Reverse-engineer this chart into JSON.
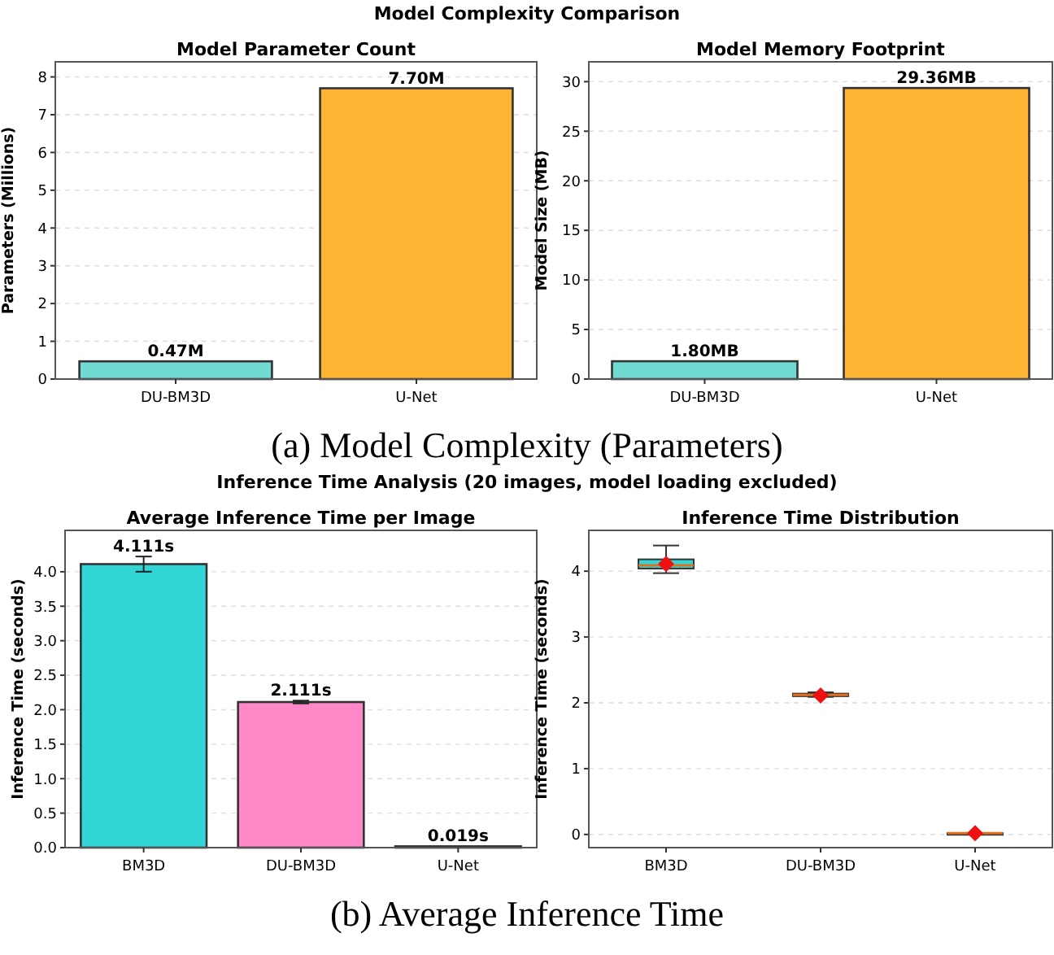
{
  "chart_data": [
    {
      "type": "bar",
      "subtitle": "Model Complexity Comparison",
      "title": "Model Parameter Count",
      "ylabel": "Parameters (Millions)",
      "categories": [
        "DU-BM3D",
        "U-Net"
      ],
      "values": [
        0.47,
        7.7
      ],
      "colors": [
        "#70d9d0",
        "#fdb432"
      ],
      "value_labels": [
        "0.47M",
        "7.70M"
      ],
      "ylim": [
        0,
        8.4
      ],
      "yticks": [
        0,
        1,
        2,
        3,
        4,
        5,
        6,
        7,
        8
      ],
      "grid": "y",
      "annotations": [
        "(a) Model Complexity (Parameters)"
      ]
    },
    {
      "type": "bar",
      "title": "Model Memory Footprint",
      "ylabel": "Model Size (MB)",
      "categories": [
        "DU-BM3D",
        "U-Net"
      ],
      "values": [
        1.8,
        29.36
      ],
      "colors": [
        "#70d9d0",
        "#fdb432"
      ],
      "value_labels": [
        "1.80MB",
        "29.36MB"
      ],
      "ylim": [
        0,
        32
      ],
      "yticks": [
        0,
        5,
        10,
        15,
        20,
        25,
        30
      ],
      "grid": "y"
    },
    {
      "type": "bar",
      "subtitle": "Inference Time Analysis (20 images, model loading excluded)",
      "title": "Average Inference Time per Image",
      "ylabel": "Inference Time (seconds)",
      "categories": [
        "BM3D",
        "DU-BM3D",
        "U-Net"
      ],
      "values": [
        4.111,
        2.111,
        0.019
      ],
      "colors": [
        "#33d6d6",
        "#ff88c8",
        "#fdb432"
      ],
      "errors": [
        0.11,
        0.02,
        null
      ],
      "value_labels": [
        "4.111s",
        "2.111s",
        "0.019s"
      ],
      "ylim": [
        0,
        4.6
      ],
      "yticks": [
        {
          "value": 0,
          "label": "0.0"
        },
        {
          "value": 0.5,
          "label": "0.5"
        },
        {
          "value": 1,
          "label": "1.0"
        },
        {
          "value": 1.5,
          "label": "1.5"
        },
        {
          "value": 2,
          "label": "2.0"
        },
        {
          "value": 2.5,
          "label": "2.5"
        },
        {
          "value": 3,
          "label": "3.0"
        },
        {
          "value": 3.5,
          "label": "3.5"
        },
        {
          "value": 4,
          "label": "4.0"
        }
      ],
      "grid": "y",
      "annotations": [
        "(b) Average Inference Time"
      ]
    },
    {
      "type": "box",
      "title": "Inference Time Distribution",
      "ylabel": "Inference Time (seconds)",
      "categories": [
        "BM3D",
        "DU-BM3D",
        "U-Net"
      ],
      "colors": [
        "#33d6d6",
        "#ff88c8",
        "#fdb432"
      ],
      "boxes": [
        {
          "low": 3.97,
          "q1": 4.04,
          "median": 4.09,
          "q3": 4.18,
          "high": 4.39,
          "mean": 4.111
        },
        {
          "low": 2.09,
          "q1": 2.1,
          "median": 2.12,
          "q3": 2.14,
          "high": 2.16,
          "mean": 2.111
        },
        {
          "low": 0.015,
          "q1": 0.017,
          "median": 0.019,
          "q3": 0.02,
          "high": 0.022,
          "mean": 0.019
        }
      ],
      "ylim": [
        -0.2,
        4.62
      ],
      "yticks": [
        0,
        1,
        2,
        3,
        4
      ],
      "grid": "y"
    }
  ]
}
